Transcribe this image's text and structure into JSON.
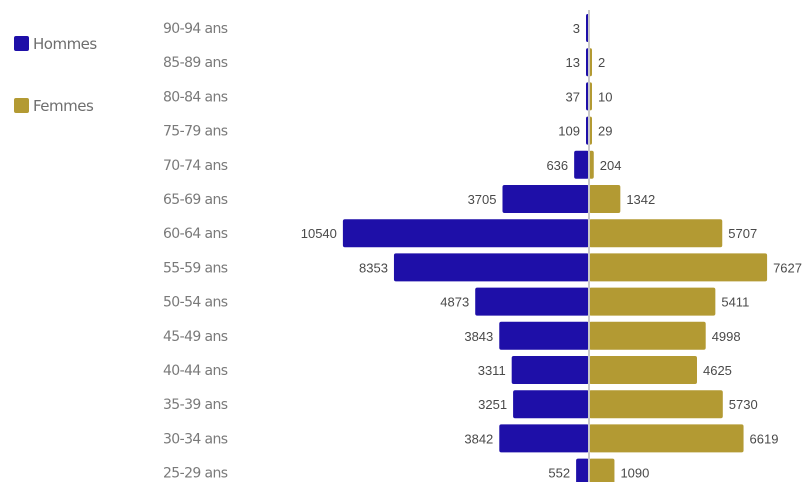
{
  "colors": {
    "hommes": "#1e0fa8",
    "femmes": "#b39a33",
    "axis": "#c9c9c9"
  },
  "legend": [
    {
      "label": "Hommes",
      "color": "#1e0fa8"
    },
    {
      "label": "Femmes",
      "color": "#b39a33"
    }
  ],
  "chart_data": {
    "type": "bar",
    "orientation": "horizontal",
    "layout": "population-pyramid",
    "categories": [
      "90-94 ans",
      "85-89 ans",
      "80-84 ans",
      "75-79 ans",
      "70-74 ans",
      "65-69 ans",
      "60-64 ans",
      "55-59 ans",
      "50-54 ans",
      "45-49 ans",
      "40-44 ans",
      "35-39 ans",
      "30-34 ans",
      "25-29 ans"
    ],
    "series": [
      {
        "name": "Hommes",
        "color": "#1e0fa8",
        "side": "left",
        "values": [
          3,
          13,
          37,
          109,
          636,
          3705,
          10540,
          8353,
          4873,
          3843,
          3311,
          3251,
          3842,
          552
        ]
      },
      {
        "name": "Femmes",
        "color": "#b39a33",
        "side": "right",
        "values": [
          null,
          2,
          10,
          29,
          204,
          1342,
          5707,
          7627,
          5411,
          4998,
          4625,
          5730,
          6619,
          1090
        ]
      }
    ],
    "legend_position": "top-left",
    "grid": false
  }
}
